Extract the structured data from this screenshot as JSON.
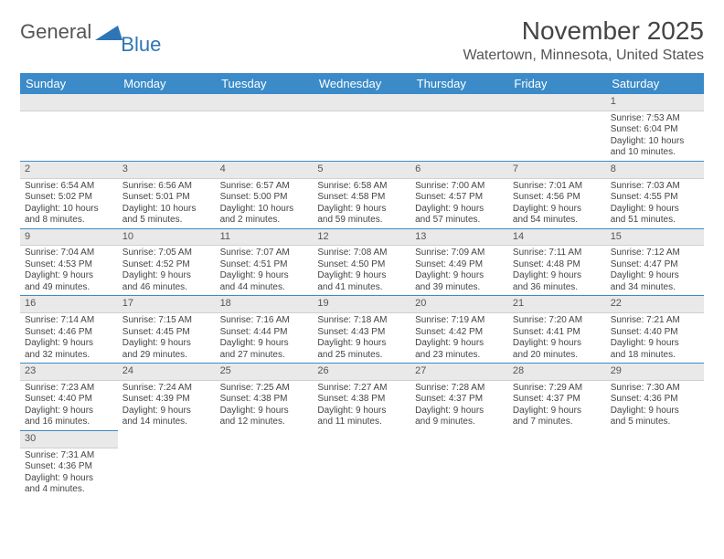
{
  "brand": {
    "part1": "General",
    "part2": "Blue"
  },
  "title": "November 2025",
  "location": "Watertown, Minnesota, United States",
  "header_bg": "#3b8bc9",
  "daynum_bg": "#e9e9e9",
  "columns": [
    "Sunday",
    "Monday",
    "Tuesday",
    "Wednesday",
    "Thursday",
    "Friday",
    "Saturday"
  ],
  "weeks": [
    [
      {
        "blank": true
      },
      {
        "blank": true
      },
      {
        "blank": true
      },
      {
        "blank": true
      },
      {
        "blank": true
      },
      {
        "blank": true
      },
      {
        "n": "1",
        "sr": "Sunrise: 7:53 AM",
        "ss": "Sunset: 6:04 PM",
        "d1": "Daylight: 10 hours",
        "d2": "and 10 minutes."
      }
    ],
    [
      {
        "n": "2",
        "sr": "Sunrise: 6:54 AM",
        "ss": "Sunset: 5:02 PM",
        "d1": "Daylight: 10 hours",
        "d2": "and 8 minutes."
      },
      {
        "n": "3",
        "sr": "Sunrise: 6:56 AM",
        "ss": "Sunset: 5:01 PM",
        "d1": "Daylight: 10 hours",
        "d2": "and 5 minutes."
      },
      {
        "n": "4",
        "sr": "Sunrise: 6:57 AM",
        "ss": "Sunset: 5:00 PM",
        "d1": "Daylight: 10 hours",
        "d2": "and 2 minutes."
      },
      {
        "n": "5",
        "sr": "Sunrise: 6:58 AM",
        "ss": "Sunset: 4:58 PM",
        "d1": "Daylight: 9 hours",
        "d2": "and 59 minutes."
      },
      {
        "n": "6",
        "sr": "Sunrise: 7:00 AM",
        "ss": "Sunset: 4:57 PM",
        "d1": "Daylight: 9 hours",
        "d2": "and 57 minutes."
      },
      {
        "n": "7",
        "sr": "Sunrise: 7:01 AM",
        "ss": "Sunset: 4:56 PM",
        "d1": "Daylight: 9 hours",
        "d2": "and 54 minutes."
      },
      {
        "n": "8",
        "sr": "Sunrise: 7:03 AM",
        "ss": "Sunset: 4:55 PM",
        "d1": "Daylight: 9 hours",
        "d2": "and 51 minutes."
      }
    ],
    [
      {
        "n": "9",
        "sr": "Sunrise: 7:04 AM",
        "ss": "Sunset: 4:53 PM",
        "d1": "Daylight: 9 hours",
        "d2": "and 49 minutes."
      },
      {
        "n": "10",
        "sr": "Sunrise: 7:05 AM",
        "ss": "Sunset: 4:52 PM",
        "d1": "Daylight: 9 hours",
        "d2": "and 46 minutes."
      },
      {
        "n": "11",
        "sr": "Sunrise: 7:07 AM",
        "ss": "Sunset: 4:51 PM",
        "d1": "Daylight: 9 hours",
        "d2": "and 44 minutes."
      },
      {
        "n": "12",
        "sr": "Sunrise: 7:08 AM",
        "ss": "Sunset: 4:50 PM",
        "d1": "Daylight: 9 hours",
        "d2": "and 41 minutes."
      },
      {
        "n": "13",
        "sr": "Sunrise: 7:09 AM",
        "ss": "Sunset: 4:49 PM",
        "d1": "Daylight: 9 hours",
        "d2": "and 39 minutes."
      },
      {
        "n": "14",
        "sr": "Sunrise: 7:11 AM",
        "ss": "Sunset: 4:48 PM",
        "d1": "Daylight: 9 hours",
        "d2": "and 36 minutes."
      },
      {
        "n": "15",
        "sr": "Sunrise: 7:12 AM",
        "ss": "Sunset: 4:47 PM",
        "d1": "Daylight: 9 hours",
        "d2": "and 34 minutes."
      }
    ],
    [
      {
        "n": "16",
        "sr": "Sunrise: 7:14 AM",
        "ss": "Sunset: 4:46 PM",
        "d1": "Daylight: 9 hours",
        "d2": "and 32 minutes."
      },
      {
        "n": "17",
        "sr": "Sunrise: 7:15 AM",
        "ss": "Sunset: 4:45 PM",
        "d1": "Daylight: 9 hours",
        "d2": "and 29 minutes."
      },
      {
        "n": "18",
        "sr": "Sunrise: 7:16 AM",
        "ss": "Sunset: 4:44 PM",
        "d1": "Daylight: 9 hours",
        "d2": "and 27 minutes."
      },
      {
        "n": "19",
        "sr": "Sunrise: 7:18 AM",
        "ss": "Sunset: 4:43 PM",
        "d1": "Daylight: 9 hours",
        "d2": "and 25 minutes."
      },
      {
        "n": "20",
        "sr": "Sunrise: 7:19 AM",
        "ss": "Sunset: 4:42 PM",
        "d1": "Daylight: 9 hours",
        "d2": "and 23 minutes."
      },
      {
        "n": "21",
        "sr": "Sunrise: 7:20 AM",
        "ss": "Sunset: 4:41 PM",
        "d1": "Daylight: 9 hours",
        "d2": "and 20 minutes."
      },
      {
        "n": "22",
        "sr": "Sunrise: 7:21 AM",
        "ss": "Sunset: 4:40 PM",
        "d1": "Daylight: 9 hours",
        "d2": "and 18 minutes."
      }
    ],
    [
      {
        "n": "23",
        "sr": "Sunrise: 7:23 AM",
        "ss": "Sunset: 4:40 PM",
        "d1": "Daylight: 9 hours",
        "d2": "and 16 minutes."
      },
      {
        "n": "24",
        "sr": "Sunrise: 7:24 AM",
        "ss": "Sunset: 4:39 PM",
        "d1": "Daylight: 9 hours",
        "d2": "and 14 minutes."
      },
      {
        "n": "25",
        "sr": "Sunrise: 7:25 AM",
        "ss": "Sunset: 4:38 PM",
        "d1": "Daylight: 9 hours",
        "d2": "and 12 minutes."
      },
      {
        "n": "26",
        "sr": "Sunrise: 7:27 AM",
        "ss": "Sunset: 4:38 PM",
        "d1": "Daylight: 9 hours",
        "d2": "and 11 minutes."
      },
      {
        "n": "27",
        "sr": "Sunrise: 7:28 AM",
        "ss": "Sunset: 4:37 PM",
        "d1": "Daylight: 9 hours",
        "d2": "and 9 minutes."
      },
      {
        "n": "28",
        "sr": "Sunrise: 7:29 AM",
        "ss": "Sunset: 4:37 PM",
        "d1": "Daylight: 9 hours",
        "d2": "and 7 minutes."
      },
      {
        "n": "29",
        "sr": "Sunrise: 7:30 AM",
        "ss": "Sunset: 4:36 PM",
        "d1": "Daylight: 9 hours",
        "d2": "and 5 minutes."
      }
    ],
    [
      {
        "n": "30",
        "sr": "Sunrise: 7:31 AM",
        "ss": "Sunset: 4:36 PM",
        "d1": "Daylight: 9 hours",
        "d2": "and 4 minutes."
      },
      {
        "after": true
      },
      {
        "after": true
      },
      {
        "after": true
      },
      {
        "after": true
      },
      {
        "after": true
      },
      {
        "after": true
      }
    ]
  ]
}
